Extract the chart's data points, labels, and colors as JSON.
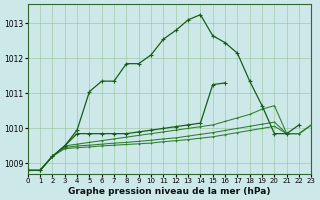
{
  "title": "Graphe pression niveau de la mer (hPa)",
  "background_color": "#cce8e8",
  "line_dark": "#1a5c1a",
  "line_mid": "#2e7d2e",
  "xlim": [
    0,
    23
  ],
  "ylim": [
    1008.7,
    1013.55
  ],
  "yticks": [
    1009,
    1010,
    1011,
    1012,
    1013
  ],
  "xticks": [
    0,
    1,
    2,
    3,
    4,
    5,
    6,
    7,
    8,
    9,
    10,
    11,
    12,
    13,
    14,
    15,
    16,
    17,
    18,
    19,
    20,
    21,
    22,
    23
  ],
  "series_main": [
    1008.8,
    1008.8,
    1009.2,
    1009.5,
    1009.95,
    1011.05,
    1011.35,
    1011.35,
    1011.85,
    1011.85,
    1012.1,
    1012.55,
    1012.8,
    1013.1,
    1013.25,
    1012.65,
    1012.45,
    1012.15,
    1011.35,
    1010.65,
    1009.85,
    1009.85,
    1010.1,
    null
  ],
  "series_b": [
    1008.8,
    1008.8,
    1009.2,
    1009.5,
    1009.85,
    1009.85,
    1009.85,
    1009.85,
    1009.85,
    1009.9,
    1009.95,
    1010.0,
    1010.05,
    1010.1,
    1010.15,
    1011.25,
    1011.3,
    null,
    null,
    null,
    null,
    null,
    null,
    null
  ],
  "series_c": [
    1008.8,
    1008.8,
    1009.2,
    1009.5,
    1009.55,
    1009.6,
    1009.65,
    1009.7,
    1009.75,
    1009.8,
    1009.85,
    1009.9,
    1009.95,
    1010.0,
    1010.05,
    1010.1,
    1010.2,
    1010.3,
    1010.4,
    1010.55,
    1010.65,
    1009.85,
    1009.85,
    1010.1
  ],
  "series_d": [
    1008.8,
    1008.8,
    1009.2,
    1009.45,
    1009.5,
    1009.52,
    1009.55,
    1009.58,
    1009.6,
    1009.63,
    1009.66,
    1009.7,
    1009.73,
    1009.78,
    1009.83,
    1009.88,
    1009.94,
    1010.0,
    1010.06,
    1010.12,
    1010.18,
    1009.85,
    1009.85,
    1010.1
  ],
  "series_e": [
    1008.8,
    1008.8,
    1009.2,
    1009.42,
    1009.45,
    1009.47,
    1009.5,
    1009.52,
    1009.54,
    1009.56,
    1009.58,
    1009.62,
    1009.65,
    1009.68,
    1009.72,
    1009.76,
    1009.82,
    1009.88,
    1009.94,
    1010.0,
    1010.06,
    1009.85,
    1009.85,
    1010.1
  ]
}
